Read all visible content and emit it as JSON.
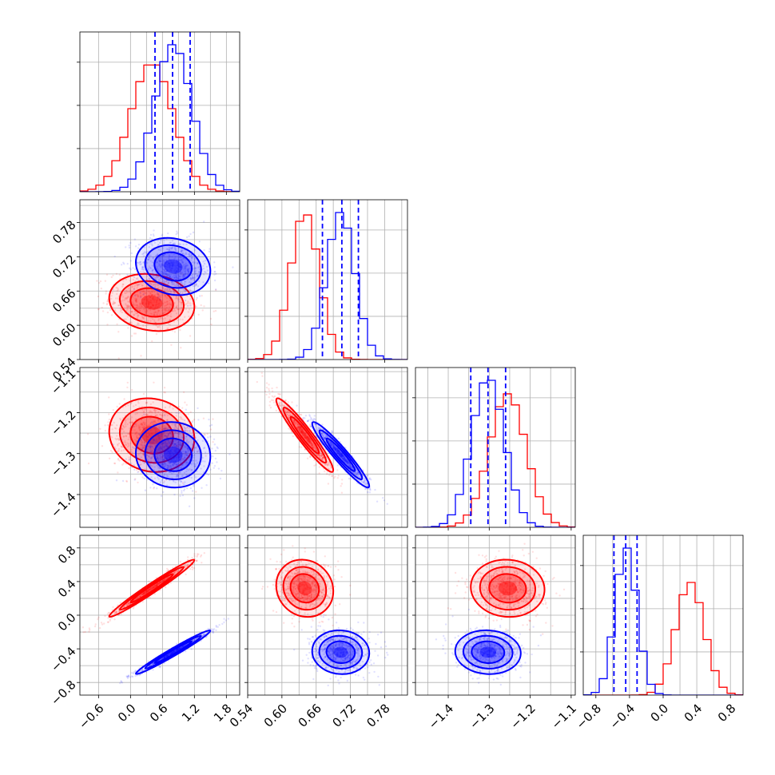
{
  "chart_data": {
    "type": "scatter",
    "kind": "corner-plot",
    "grid": true,
    "colors": {
      "series_a": "#ff0000",
      "series_b": "#0000ff"
    },
    "parameters": [
      {
        "range": [
          -0.95,
          2.05
        ],
        "ticks": [
          -0.6,
          0.0,
          0.6,
          1.2,
          1.8
        ],
        "tick_labels": [
          "−0.6",
          "0.0",
          "0.6",
          "1.2",
          "1.8"
        ]
      },
      {
        "range": [
          0.54,
          0.82
        ],
        "ticks": [
          0.54,
          0.6,
          0.66,
          0.72,
          0.78
        ],
        "tick_labels": [
          "0.54",
          "0.60",
          "0.66",
          "0.72",
          "0.78"
        ]
      },
      {
        "range": [
          -1.48,
          -1.09
        ],
        "ticks": [
          -1.4,
          -1.3,
          -1.2,
          -1.1
        ],
        "tick_labels": [
          "−1.4",
          "−1.3",
          "−1.2",
          "−1.1"
        ]
      },
      {
        "range": [
          -0.95,
          0.95
        ],
        "ticks": [
          -0.8,
          -0.4,
          0.0,
          0.4,
          0.8
        ],
        "tick_labels": [
          "−0.8",
          "−0.4",
          "0.0",
          "0.4",
          "0.8"
        ]
      }
    ],
    "series": [
      {
        "color": "#ff0000",
        "mean": [
          0.4,
          0.64,
          -1.255,
          0.32
        ],
        "std": [
          0.4,
          0.025,
          0.045,
          0.17
        ],
        "corr": [
          [
            1.0,
            -0.15,
            -0.1,
            0.98
          ],
          [
            -0.15,
            1.0,
            -0.95,
            -0.1
          ],
          [
            -0.1,
            -0.95,
            1.0,
            -0.05
          ],
          [
            0.98,
            -0.1,
            -0.05,
            1.0
          ]
        ]
      },
      {
        "color": "#0000ff",
        "mean": [
          0.8,
          0.703,
          -1.303,
          -0.44
        ],
        "std": [
          0.35,
          0.025,
          0.04,
          0.13
        ],
        "corr": [
          [
            1.0,
            -0.15,
            -0.05,
            0.98
          ],
          [
            -0.15,
            1.0,
            -0.95,
            -0.05
          ],
          [
            -0.05,
            -0.95,
            1.0,
            -0.05
          ],
          [
            0.98,
            -0.05,
            -0.05,
            1.0
          ]
        ],
        "quantiles": [
          [
            0.46,
            0.79,
            1.12
          ],
          [
            0.671,
            0.705,
            0.734
          ],
          [
            -1.345,
            -1.303,
            -1.26
          ],
          [
            -0.585,
            -0.445,
            -0.31
          ]
        ]
      }
    ],
    "extra_gridlines": [
      [
        0.3,
        0.9,
        1.5
      ],
      [
        0.57,
        0.63,
        0.69,
        0.75,
        0.81
      ],
      [
        -1.45,
        -1.35,
        -1.25,
        -1.15
      ],
      [
        -0.6,
        -0.2,
        0.2,
        0.6
      ]
    ]
  }
}
